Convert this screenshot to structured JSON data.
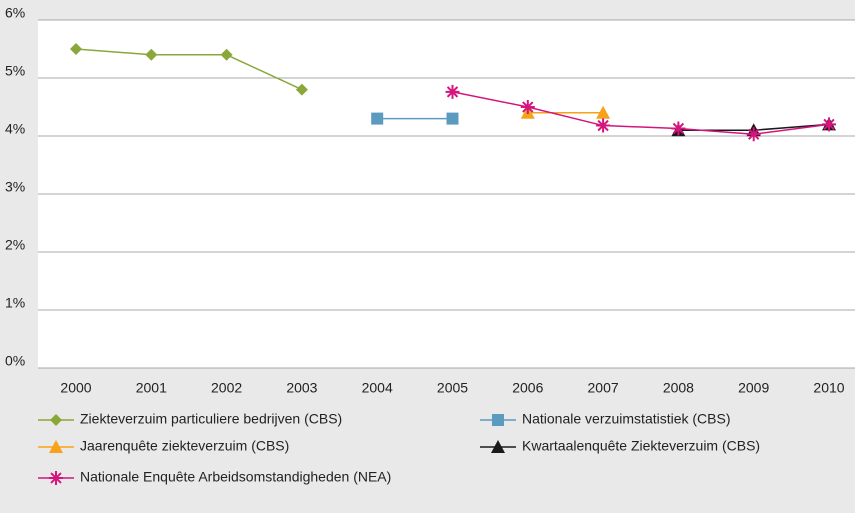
{
  "chart_data": {
    "type": "line",
    "categories": [
      "2000",
      "2001",
      "2002",
      "2003",
      "2004",
      "2005",
      "2006",
      "2007",
      "2008",
      "2009",
      "2010"
    ],
    "ylim": [
      0,
      6
    ],
    "yticks": [
      {
        "value": 0,
        "label": "0%"
      },
      {
        "value": 1,
        "label": "1%"
      },
      {
        "value": 2,
        "label": "2%"
      },
      {
        "value": 3,
        "label": "3%"
      },
      {
        "value": 4,
        "label": "4%"
      },
      {
        "value": 5,
        "label": "5%"
      },
      {
        "value": 6,
        "label": "6%"
      }
    ],
    "grid": true,
    "legend": "bottom",
    "series": [
      {
        "name": "Ziekteverzuim particuliere bedrijven (CBS)",
        "color": "#8aa83a",
        "marker": "diamond",
        "values": [
          5.5,
          5.4,
          5.4,
          4.8,
          null,
          null,
          null,
          null,
          null,
          null,
          null
        ]
      },
      {
        "name": "Nationale verzuimstatistiek (CBS)",
        "color": "#5b9bc0",
        "marker": "square",
        "values": [
          null,
          null,
          null,
          null,
          4.3,
          4.3,
          null,
          null,
          null,
          null,
          null
        ]
      },
      {
        "name": "Jaarenquête ziekteverzuim (CBS)",
        "color": "#f7a21b",
        "marker": "triangle",
        "values": [
          null,
          null,
          null,
          null,
          null,
          null,
          4.4,
          4.4,
          null,
          null,
          null
        ]
      },
      {
        "name": "Kwartaalenquête Ziekteverzuim (CBS)",
        "color": "#1a1a1a",
        "marker": "triangle",
        "values": [
          null,
          null,
          null,
          null,
          null,
          null,
          null,
          null,
          4.1,
          4.1,
          4.2
        ]
      },
      {
        "name": "Nationale Enquête Arbeidsomstandigheden (NEA)",
        "color": "#d4157d",
        "marker": "star",
        "values": [
          null,
          null,
          null,
          null,
          null,
          4.76,
          4.5,
          4.18,
          4.13,
          4.03,
          4.2
        ]
      }
    ]
  }
}
